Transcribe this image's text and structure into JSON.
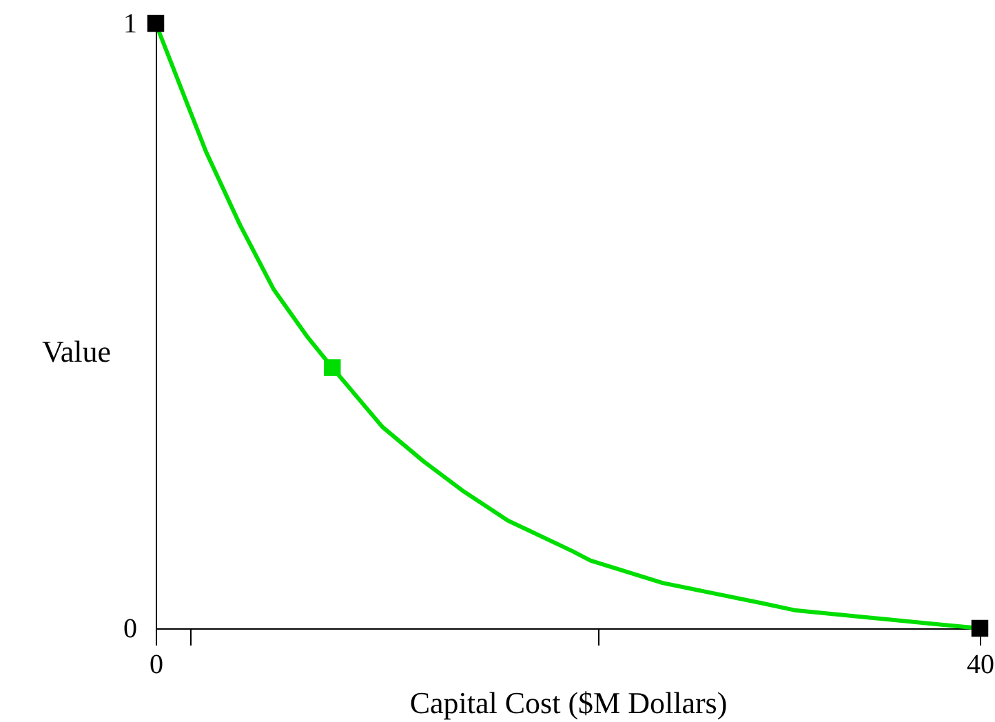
{
  "chart_data": {
    "type": "line",
    "xlabel": "Capital Cost ($M Dollars)",
    "ylabel": "Value",
    "xlim": [
      0,
      40
    ],
    "ylim": [
      0,
      1
    ],
    "xticks": [
      0,
      {
        "value": 1.7,
        "label": null
      },
      {
        "value": 21.5,
        "label": null
      },
      40
    ],
    "yticks": [
      0,
      1
    ],
    "series": [
      {
        "color": "#00dd00",
        "marker": "none",
        "line_style": "solid",
        "x": [
          0,
          2.44,
          4.09,
          5.73,
          7.38,
          8.57,
          11.0,
          13.0,
          14.96,
          17.1,
          20.2,
          21.1,
          24.6,
          29.5,
          31.0,
          37.8,
          40
        ],
        "values": [
          1,
          0.788,
          0.667,
          0.56,
          0.481,
          0.431,
          0.333,
          0.276,
          0.226,
          0.178,
          0.128,
          0.112,
          0.075,
          0.041,
          0.03,
          0.007,
          0
        ]
      },
      {
        "type": "scatter",
        "color": "#000000",
        "marker": "square",
        "x": [
          0,
          40
        ],
        "values": [
          1,
          0
        ]
      },
      {
        "type": "scatter",
        "color": "#00dd00",
        "marker": "square",
        "x": [
          8.57
        ],
        "values": [
          0.431
        ]
      }
    ]
  }
}
